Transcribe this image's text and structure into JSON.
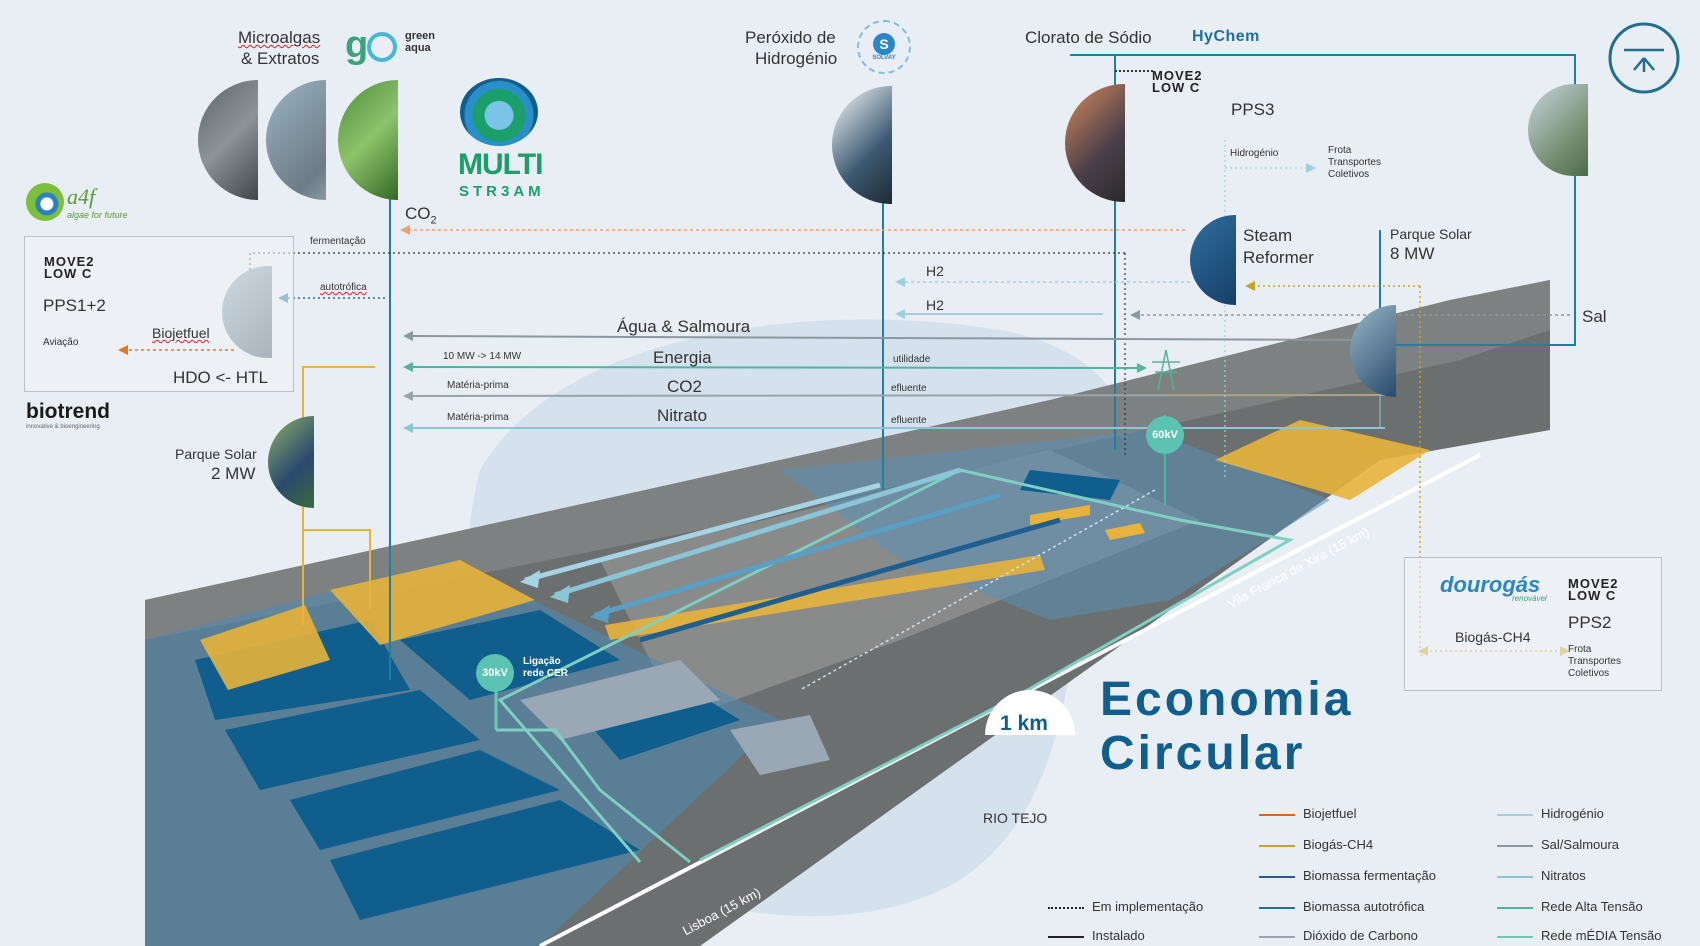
{
  "partners": {
    "microalgas": "Microalgas",
    "extratos": "& Extratos",
    "green_aqua_l1": "green",
    "green_aqua_l2": "aqua",
    "multi": "MULTI",
    "stream": "STR3AM",
    "a4f": "a4f",
    "a4f_sub": "algae for future",
    "biotrend": "biotrend",
    "biotrend_sub": "innovative & bioengineering",
    "peroxido_l1": "Peróxido de",
    "peroxido_l2": "Hidrogénio",
    "solvay": "SOLVAY",
    "clorato": "Clorato de Sódio",
    "hychem": "HyChem",
    "move2lowc": "MOVE2\nLOWC",
    "dourogas": "dourogás",
    "dourogas_sub": "renovável"
  },
  "left_box": {
    "move2": "MOVE2",
    "lowc": "LOW C",
    "pps": "PPS1+2",
    "aviacao": "Aviação",
    "biojetfuel": "Biojetfuel",
    "hdo": "HDO <- HTL",
    "fermentacao": "fermentação",
    "autotrofica": "autotrófica"
  },
  "labels": {
    "co2_top": "CO",
    "co2_sub": "2",
    "pps3": "PPS3",
    "hidrogenio": "Hidrogénio",
    "frota1": "Frota",
    "frota2": "Transportes",
    "frota3": "Coletivos",
    "steam1": "Steam",
    "steam2": "Reformer",
    "solar8_1": "Parque Solar",
    "solar8_2": "8 MW",
    "h2a": "H2",
    "h2b": "H2",
    "sal": "Sal",
    "agua": "Água & Salmoura",
    "mw": "10 MW  ->  14 MW",
    "energia": "Energia",
    "utilidade": "utilidade",
    "mp1": "Matéria-prima",
    "co2": "CO2",
    "efluente1": "efluente",
    "mp2": "Matéria-prima",
    "nitrato": "Nitrato",
    "efluente2": "efluente",
    "solar2_1": "Parque Solar",
    "solar2_2": "2 MW",
    "kv60": "60kV",
    "kv30": "30kV",
    "ligacao1": "Ligação",
    "ligacao2": "rede CER",
    "km": "1 km",
    "vfx": "Vila Franca de Xira (15 km)",
    "lisboa": "Lisboa (15 km)",
    "rio": "RIO TEJO",
    "eco1": "Economia",
    "eco2": "Circular"
  },
  "right_box": {
    "move2": "MOVE2",
    "lowc": "LOW C",
    "pps": "PPS2",
    "biogas": "Biogás-CH4",
    "frota1": "Frota",
    "frota2": "Transportes",
    "frota3": "Coletivos"
  },
  "legend": {
    "status": [
      {
        "label": "Em implementação",
        "style": "dotted"
      },
      {
        "label": "Instalado",
        "style": "solid"
      }
    ],
    "col1": [
      {
        "label": "Biojetfuel",
        "color": "#d9622b"
      },
      {
        "label": "Biogás-CH4",
        "color": "#c9a227"
      },
      {
        "label": "Biomassa fermentação",
        "color": "#1f5f8f"
      },
      {
        "label": "Biomassa autotrófica",
        "color": "#1f6f9f"
      },
      {
        "label": "Dióxido de Carbono",
        "color": "#9aa3ab"
      }
    ],
    "col2": [
      {
        "label": "Hidrogénio",
        "color": "#9fd0de"
      },
      {
        "label": "Sal/Salmoura",
        "color": "#8d97a0"
      },
      {
        "label": "Nitratos",
        "color": "#8ac6d8"
      },
      {
        "label": "Rede Alta Tensão",
        "color": "#4fb59e"
      },
      {
        "label": "Rede mÉDIA Tensão",
        "color": "#6cc8b3"
      }
    ]
  },
  "colors": {
    "teal_line": "#1f7fa0",
    "yellow": "#e8b33a",
    "pond_blue": "#0f5e8e",
    "orange": "#e07a2a",
    "hydrogen": "#9fd0de"
  }
}
